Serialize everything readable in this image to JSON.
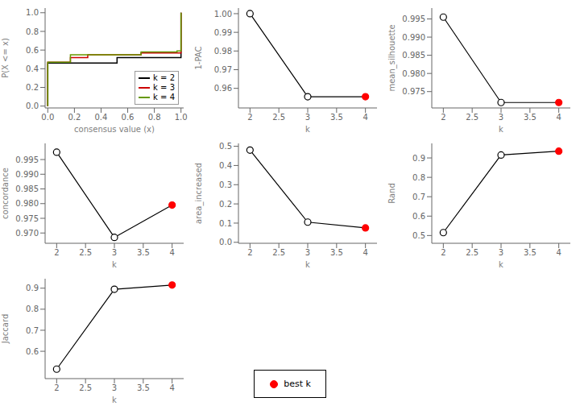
{
  "chart_data": [
    {
      "type": "step",
      "x_label": "consensus value (x)",
      "y_label": "P(X <= x)",
      "xlim": [
        -0.02,
        1.02
      ],
      "ylim": [
        -0.02,
        1.05
      ],
      "xticks": [
        {
          "value": 0.0,
          "label": "0.0"
        },
        0.2,
        0.4,
        0.6,
        0.8,
        {
          "value": 1.0,
          "label": "1.0"
        }
      ],
      "yticks": [
        {
          "value": 0.0,
          "label": "0.0"
        },
        0.2,
        0.4,
        0.6,
        0.8,
        {
          "value": 1.0,
          "label": "1.0"
        }
      ],
      "legend": "lower right",
      "series": [
        {
          "name": "k = 2",
          "color": "#000000",
          "x": [
            0.0,
            0.0,
            0.47,
            0.52,
            1.0,
            1.0
          ],
          "values": [
            0.0,
            0.46,
            0.46,
            0.52,
            0.52,
            1.0
          ]
        },
        {
          "name": "k = 3",
          "color": "#cc0000",
          "x": [
            0.0,
            0.0,
            0.17,
            0.3,
            0.7,
            1.0,
            1.0
          ],
          "values": [
            0.0,
            0.47,
            0.52,
            0.55,
            0.57,
            0.57,
            1.0
          ]
        },
        {
          "name": "k = 4",
          "color": "#669900",
          "x": [
            0.0,
            0.0,
            0.17,
            0.7,
            0.97,
            1.0,
            1.0
          ],
          "values": [
            0.0,
            0.47,
            0.55,
            0.58,
            0.59,
            0.59,
            1.0
          ]
        }
      ]
    },
    {
      "type": "line",
      "x_label": "k",
      "y_label": "1-PAC",
      "x": [
        2,
        3,
        4
      ],
      "values": [
        1.0,
        0.9555,
        0.9555
      ],
      "color": "#000000",
      "colors": [
        "#ffffff",
        "#ffffff",
        "#ff0000"
      ],
      "marker": "o",
      "xlim": [
        1.8,
        4.2
      ],
      "xticks": [
        2,
        2.5,
        3,
        3.5,
        4
      ],
      "ylim": [
        0.9495,
        1.003
      ],
      "yticks": [
        0.96,
        0.97,
        0.98,
        0.99,
        {
          "value": 1.0,
          "label": "1.00"
        }
      ]
    },
    {
      "type": "line",
      "x_label": "k",
      "y_label": "mean_silhouette",
      "x": [
        2,
        3,
        4
      ],
      "values": [
        0.9955,
        0.972,
        0.972
      ],
      "color": "#000000",
      "colors": [
        "#ffffff",
        "#ffffff",
        "#ff0000"
      ],
      "marker": "o",
      "xlim": [
        1.8,
        4.2
      ],
      "xticks": [
        2,
        2.5,
        3,
        3.5,
        4
      ],
      "ylim": [
        0.9705,
        0.998
      ],
      "yticks": [
        0.975,
        {
          "value": 0.98,
          "label": "0.980"
        },
        0.985,
        {
          "value": 0.99,
          "label": "0.990"
        },
        0.995
      ]
    },
    {
      "type": "line",
      "x_label": "k",
      "y_label": "concordance",
      "x": [
        2,
        3,
        4
      ],
      "values": [
        0.9975,
        0.9685,
        0.9795
      ],
      "color": "#000000",
      "colors": [
        "#ffffff",
        "#ffffff",
        "#ff0000"
      ],
      "marker": "o",
      "xlim": [
        1.8,
        4.2
      ],
      "xticks": [
        2,
        2.5,
        3,
        3.5,
        4
      ],
      "ylim": [
        0.9665,
        1.0005
      ],
      "yticks": [
        {
          "value": 0.97,
          "label": "0.970"
        },
        0.975,
        {
          "value": 0.98,
          "label": "0.980"
        },
        0.985,
        {
          "value": 0.99,
          "label": "0.990"
        },
        0.995
      ]
    },
    {
      "type": "line",
      "x_label": "k",
      "y_label": "area_increased",
      "x": [
        2,
        3,
        4
      ],
      "values": [
        0.48,
        0.105,
        0.075
      ],
      "color": "#000000",
      "colors": [
        "#ffffff",
        "#ffffff",
        "#ff0000"
      ],
      "marker": "o",
      "xlim": [
        1.8,
        4.2
      ],
      "xticks": [
        2,
        2.5,
        3,
        3.5,
        4
      ],
      "ylim": [
        -0.005,
        0.515
      ],
      "yticks": [
        {
          "value": 0.0,
          "label": "0.0"
        },
        0.1,
        0.2,
        0.3,
        0.4,
        0.5
      ]
    },
    {
      "type": "line",
      "x_label": "k",
      "y_label": "Rand",
      "x": [
        2,
        3,
        4
      ],
      "values": [
        0.515,
        0.915,
        0.935
      ],
      "color": "#000000",
      "colors": [
        "#ffffff",
        "#ffffff",
        "#ff0000"
      ],
      "marker": "o",
      "xlim": [
        1.8,
        4.2
      ],
      "xticks": [
        2,
        2.5,
        3,
        3.5,
        4
      ],
      "ylim": [
        0.46,
        0.975
      ],
      "yticks": [
        0.5,
        0.6,
        0.7,
        0.8,
        0.9
      ]
    },
    {
      "type": "line",
      "x_label": "k",
      "y_label": "Jaccard",
      "x": [
        2,
        3,
        4
      ],
      "values": [
        0.515,
        0.895,
        0.915
      ],
      "color": "#000000",
      "colors": [
        "#ffffff",
        "#ffffff",
        "#ff0000"
      ],
      "marker": "o",
      "xlim": [
        1.8,
        4.2
      ],
      "xticks": [
        2,
        2.5,
        3,
        3.5,
        4
      ],
      "ylim": [
        0.47,
        0.945
      ],
      "yticks": [
        0.6,
        0.7,
        0.8,
        0.9
      ]
    },
    {
      "type": "legend",
      "series": [
        {
          "name": "best k",
          "color": "#ff0000",
          "marker": "o"
        }
      ]
    }
  ]
}
